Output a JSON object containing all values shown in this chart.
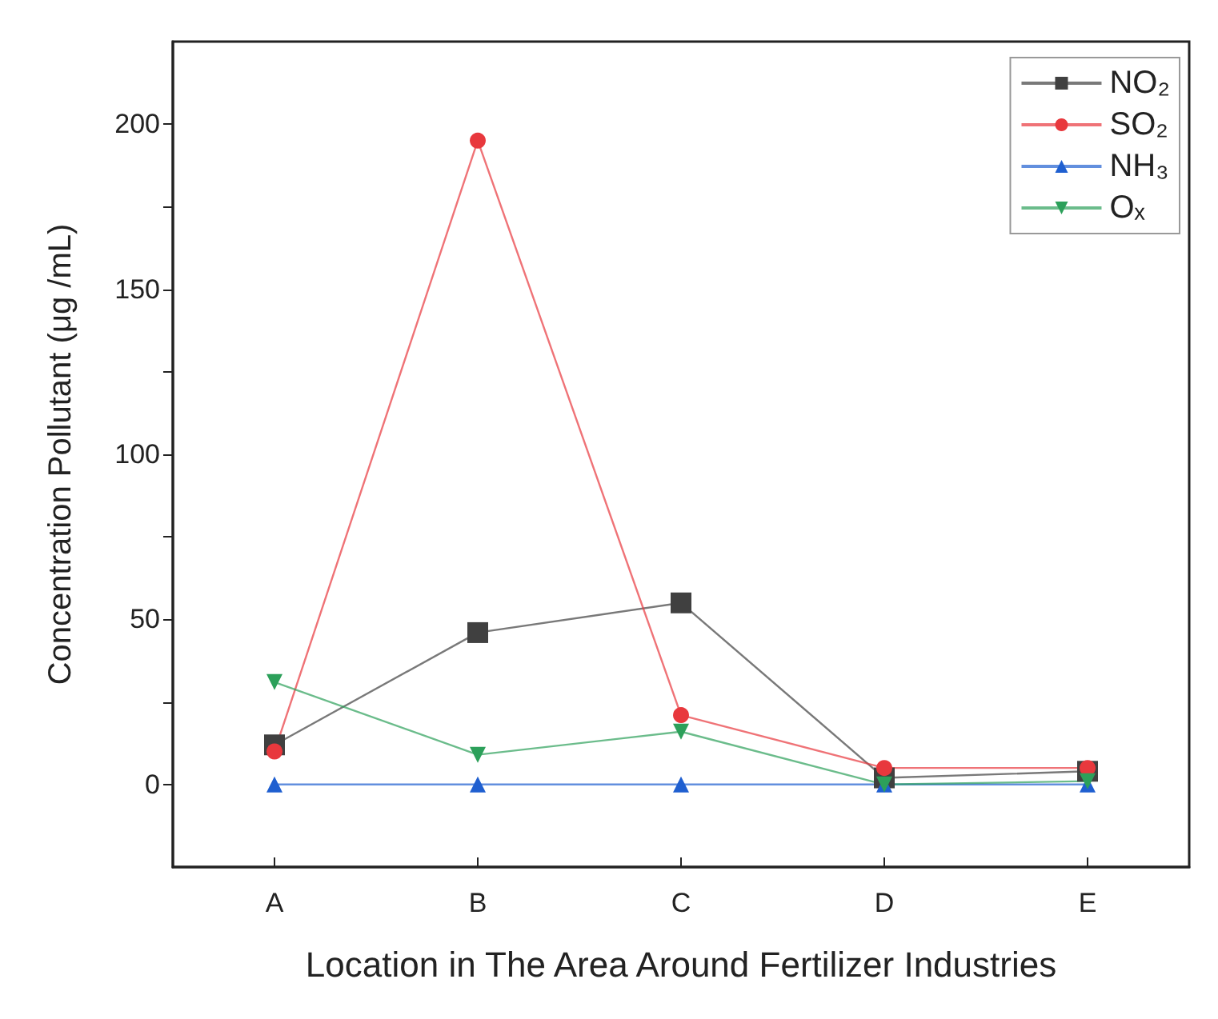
{
  "chart_data": {
    "type": "line",
    "xlabel": "Location in The Area Around Fertilizer Industries",
    "ylabel": "Concentration Pollutant (μg /mL)",
    "categories": [
      "A",
      "B",
      "C",
      "D",
      "E"
    ],
    "series": [
      {
        "name": "NO₂",
        "color": "#404040",
        "marker": "square",
        "values": [
          12,
          46,
          55,
          2,
          4
        ]
      },
      {
        "name": "SO₂",
        "color": "#e8383d",
        "marker": "circle",
        "values": [
          10,
          195,
          21,
          5,
          5
        ]
      },
      {
        "name": "NH₃",
        "color": "#1f5fd0",
        "marker": "triangle",
        "values": [
          0,
          0,
          0,
          0,
          0
        ]
      },
      {
        "name": "Oₓ",
        "color": "#2ca05a",
        "marker": "triangle_down",
        "values": [
          31,
          9,
          16,
          0,
          1
        ]
      }
    ],
    "ylim": [
      -25,
      225
    ],
    "yticks": [
      0,
      {
        "value": 25,
        "label": null
      },
      50,
      {
        "value": 75,
        "label": null
      },
      100,
      {
        "value": 125,
        "label": null
      },
      150,
      {
        "value": 175,
        "label": null
      },
      200
    ],
    "grid": false,
    "legend": "top right",
    "line_style": "solid"
  }
}
